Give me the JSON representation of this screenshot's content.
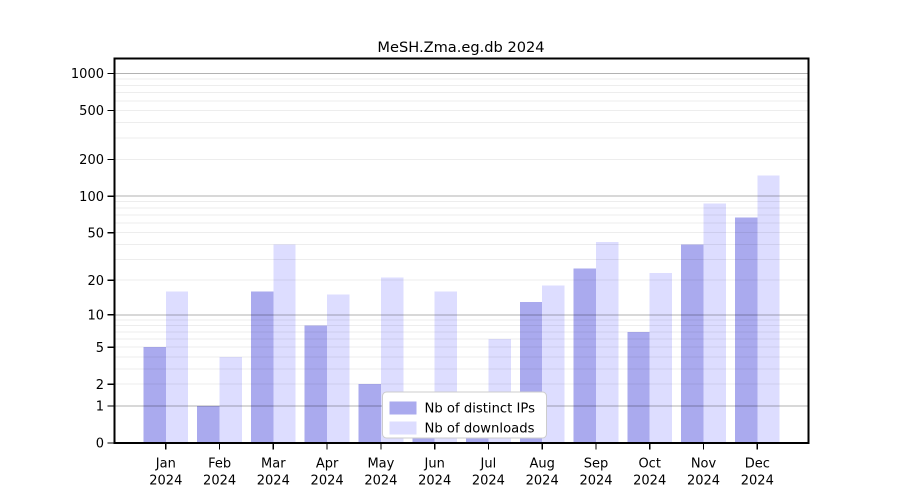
{
  "chart_data": {
    "type": "bar",
    "title": "MeSH.Zma.eg.db 2024",
    "categories": [
      "Jan",
      "Feb",
      "Mar",
      "Apr",
      "May",
      "Jun",
      "Jul",
      "Aug",
      "Sep",
      "Oct",
      "Nov",
      "Dec"
    ],
    "year_label": "2024",
    "series": [
      {
        "name": "Nb of distinct IPs",
        "color": "#aaaaee",
        "values": [
          5,
          1,
          16,
          8,
          2,
          1,
          1,
          13,
          25,
          7,
          40,
          67
        ]
      },
      {
        "name": "Nb of downloads",
        "color": "#ddddff",
        "values": [
          16,
          4,
          40,
          15,
          21,
          16,
          6,
          18,
          42,
          23,
          87,
          148
        ]
      }
    ],
    "xlabel": "",
    "ylabel": "",
    "yticks": [
      0,
      1,
      2,
      5,
      10,
      20,
      50,
      100,
      200,
      500,
      1000
    ],
    "y_scale": "log1p",
    "ylim": [
      0,
      1325
    ],
    "grid": {
      "orientation": "horizontal",
      "major_lines": [
        1,
        10,
        100,
        1000
      ],
      "minor_lines": "2-9, 20-90, 200-900",
      "drawn_over_bars": true
    },
    "legend_position": "lower-center-inside",
    "colors": {
      "axis": "#000000",
      "major_grid": "#b3b3b3",
      "minor_grid": "#ececec",
      "legend_border": "#cccccc",
      "legend_background": "#ffffff"
    }
  }
}
